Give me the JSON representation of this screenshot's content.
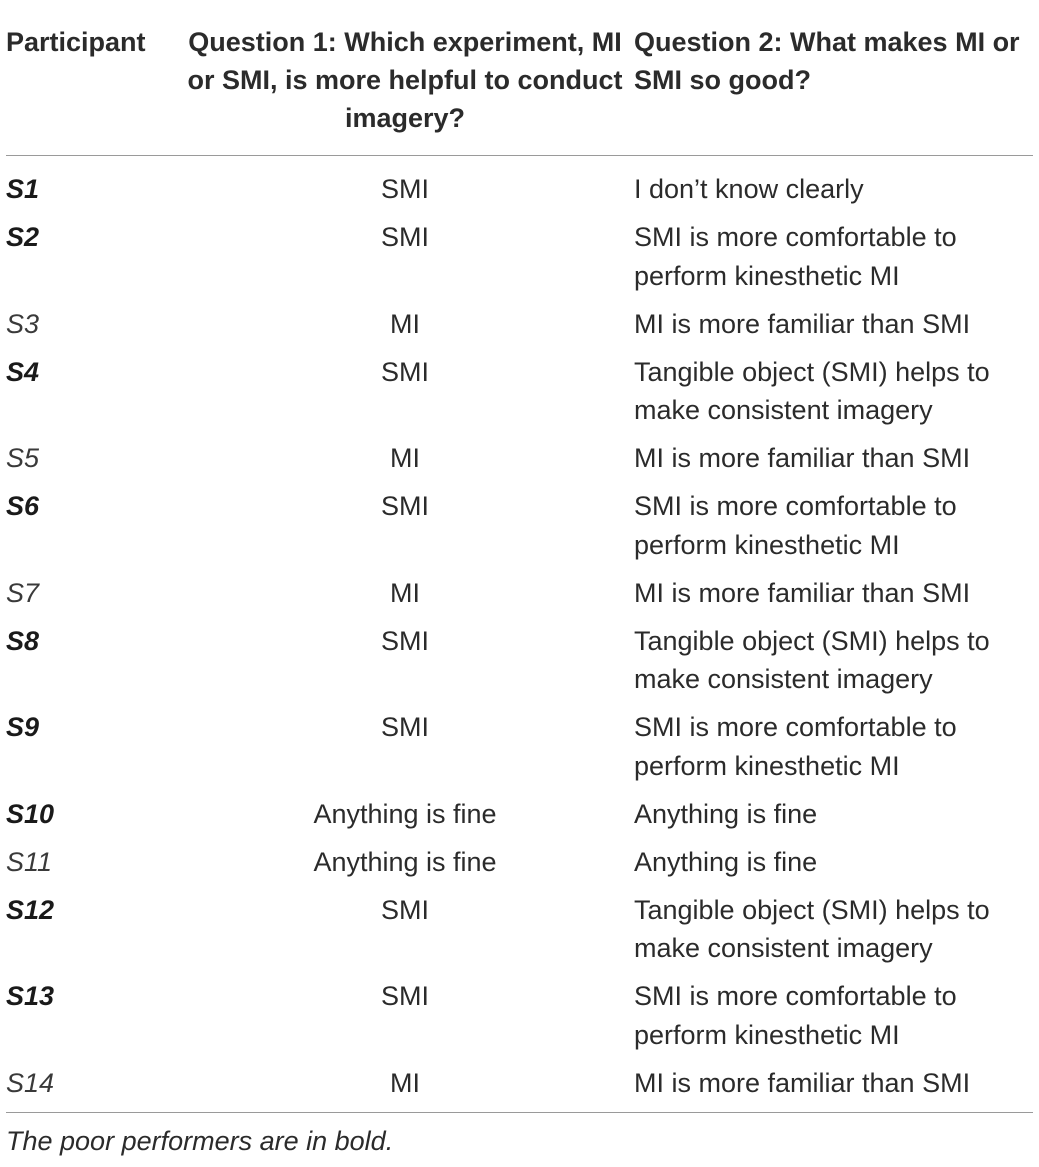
{
  "table": {
    "headers": {
      "participant": "Participant",
      "q1": "Question 1: Which experiment, MI or SMI, is more helpful to conduct imagery?",
      "q2": "Question 2: What makes MI or SMI so good?"
    },
    "rows": [
      {
        "participant": "S1",
        "bold": true,
        "q1": "SMI",
        "q2": "I don’t know clearly"
      },
      {
        "participant": "S2",
        "bold": true,
        "q1": "SMI",
        "q2": "SMI is more comfortable to perform kinesthetic MI"
      },
      {
        "participant": "S3",
        "bold": false,
        "q1": "MI",
        "q2": "MI is more familiar than SMI"
      },
      {
        "participant": "S4",
        "bold": true,
        "q1": "SMI",
        "q2": "Tangible object (SMI) helps to make consistent imagery"
      },
      {
        "participant": "S5",
        "bold": false,
        "q1": "MI",
        "q2": "MI is more familiar than SMI"
      },
      {
        "participant": "S6",
        "bold": true,
        "q1": "SMI",
        "q2": "SMI is more comfortable to perform kinesthetic MI"
      },
      {
        "participant": "S7",
        "bold": false,
        "q1": "MI",
        "q2": "MI is more familiar than SMI"
      },
      {
        "participant": "S8",
        "bold": true,
        "q1": "SMI",
        "q2": "Tangible object (SMI) helps to make consistent imagery"
      },
      {
        "participant": "S9",
        "bold": true,
        "q1": "SMI",
        "q2": "SMI is more comfortable to perform kinesthetic MI"
      },
      {
        "participant": "S10",
        "bold": true,
        "q1": "Anything is fine",
        "q2": "Anything is fine"
      },
      {
        "participant": "S11",
        "bold": false,
        "q1": "Anything is fine",
        "q2": "Anything is fine"
      },
      {
        "participant": "S12",
        "bold": true,
        "q1": "SMI",
        "q2": "Tangible object (SMI) helps to make consistent imagery"
      },
      {
        "participant": "S13",
        "bold": true,
        "q1": "SMI",
        "q2": "SMI is more comfortable to perform kinesthetic MI"
      },
      {
        "participant": "S14",
        "bold": false,
        "q1": "MI",
        "q2": "MI is more familiar than SMI"
      }
    ]
  },
  "footnote": "The poor performers are in bold."
}
